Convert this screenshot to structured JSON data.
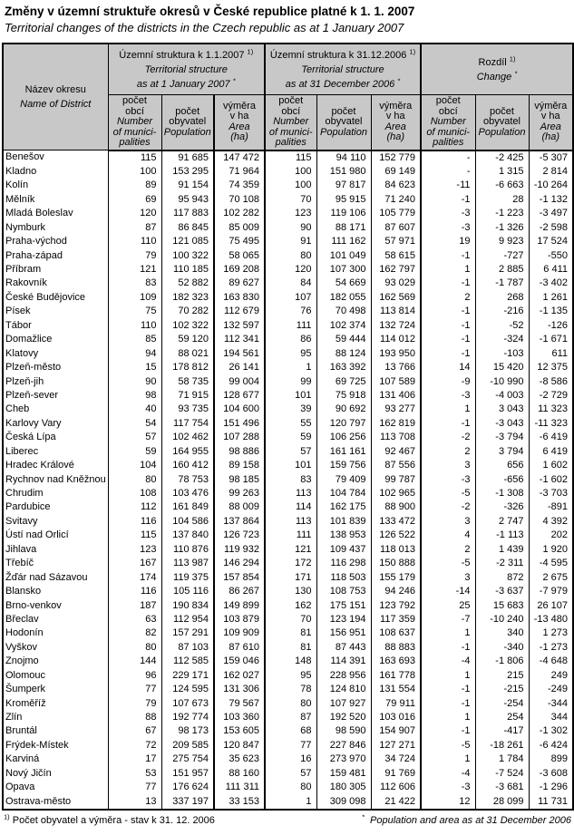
{
  "title": "Změny v územní struktuře okresů v České republice platné k 1. 1. 2007",
  "subtitle": "Territorial changes of the districts in the Czech republic as at 1 January 2007",
  "table": {
    "name_header": {
      "cs": "Název okresu",
      "en": "Name of District"
    },
    "groups": [
      {
        "cs": "Územní struktura k 1.1.2007",
        "cs_marker": "1)",
        "en1": "Territorial structure",
        "en2": "as at 1 January 2007",
        "en_marker": "*"
      },
      {
        "cs": "Územní struktura k  31.12.2006",
        "cs_marker": "1)",
        "en1": "Territorial structure",
        "en2": "as at 31 December 2006",
        "en_marker": "*"
      },
      {
        "cs": "Rozdíl",
        "cs_marker": "1)",
        "en1": "Change",
        "en2": "",
        "en_marker": "*"
      }
    ],
    "subcols": [
      {
        "cs": [
          "počet",
          "obcí"
        ],
        "en": [
          "Number",
          "of munici-",
          "palities"
        ]
      },
      {
        "cs": [
          "počet",
          "obyvatel"
        ],
        "en": [
          "Population"
        ]
      },
      {
        "cs": [
          "výměra",
          "v ha"
        ],
        "en": [
          "Area",
          "(ha)"
        ]
      }
    ],
    "rows": [
      {
        "name": "Benešov",
        "v": [
          "115",
          "91 685",
          "147 472",
          "115",
          "94 110",
          "152 779",
          "-",
          "-2 425",
          "-5 307"
        ]
      },
      {
        "name": "Kladno",
        "v": [
          "100",
          "153 295",
          "71 964",
          "100",
          "151 980",
          "69 149",
          "-",
          "1 315",
          "2 814"
        ]
      },
      {
        "name": "Kolín",
        "v": [
          "89",
          "91 154",
          "74 359",
          "100",
          "97 817",
          "84 623",
          "-11",
          "-6 663",
          "-10 264"
        ]
      },
      {
        "name": "Mělník",
        "v": [
          "69",
          "95 943",
          "70 108",
          "70",
          "95 915",
          "71 240",
          "-1",
          "28",
          "-1 132"
        ]
      },
      {
        "name": "Mladá Boleslav",
        "v": [
          "120",
          "117 883",
          "102 282",
          "123",
          "119 106",
          "105 779",
          "-3",
          "-1 223",
          "-3 497"
        ]
      },
      {
        "name": "Nymburk",
        "v": [
          "87",
          "86 845",
          "85 009",
          "90",
          "88 171",
          "87 607",
          "-3",
          "-1 326",
          "-2 598"
        ]
      },
      {
        "name": "Praha-východ",
        "v": [
          "110",
          "121 085",
          "75 495",
          "91",
          "111 162",
          "57 971",
          "19",
          "9 923",
          "17 524"
        ]
      },
      {
        "name": "Praha-západ",
        "v": [
          "79",
          "100 322",
          "58 065",
          "80",
          "101 049",
          "58 615",
          "-1",
          "-727",
          "-550"
        ]
      },
      {
        "name": "Příbram",
        "v": [
          "121",
          "110 185",
          "169 208",
          "120",
          "107 300",
          "162 797",
          "1",
          "2 885",
          "6 411"
        ]
      },
      {
        "name": "Rakovník",
        "v": [
          "83",
          "52 882",
          "89 627",
          "84",
          "54 669",
          "93 029",
          "-1",
          "-1 787",
          "-3 402"
        ]
      },
      {
        "name": "České Budějovice",
        "v": [
          "109",
          "182 323",
          "163 830",
          "107",
          "182 055",
          "162 569",
          "2",
          "268",
          "1 261"
        ]
      },
      {
        "name": "Písek",
        "v": [
          "75",
          "70 282",
          "112 679",
          "76",
          "70 498",
          "113 814",
          "-1",
          "-216",
          "-1 135"
        ]
      },
      {
        "name": "Tábor",
        "v": [
          "110",
          "102 322",
          "132 597",
          "111",
          "102 374",
          "132 724",
          "-1",
          "-52",
          "-126"
        ]
      },
      {
        "name": "Domažlice",
        "v": [
          "85",
          "59 120",
          "112 341",
          "86",
          "59 444",
          "114 012",
          "-1",
          "-324",
          "-1 671"
        ]
      },
      {
        "name": "Klatovy",
        "v": [
          "94",
          "88 021",
          "194 561",
          "95",
          "88 124",
          "193 950",
          "-1",
          "-103",
          "611"
        ]
      },
      {
        "name": "Plzeň-město",
        "v": [
          "15",
          "178 812",
          "26 141",
          "1",
          "163 392",
          "13 766",
          "14",
          "15 420",
          "12 375"
        ]
      },
      {
        "name": "Plzeň-jih",
        "v": [
          "90",
          "58 735",
          "99 004",
          "99",
          "69 725",
          "107 589",
          "-9",
          "-10 990",
          "-8 586"
        ]
      },
      {
        "name": "Plzeň-sever",
        "v": [
          "98",
          "71 915",
          "128 677",
          "101",
          "75 918",
          "131 406",
          "-3",
          "-4 003",
          "-2 729"
        ]
      },
      {
        "name": "Cheb",
        "v": [
          "40",
          "93 735",
          "104 600",
          "39",
          "90 692",
          "93 277",
          "1",
          "3 043",
          "11 323"
        ]
      },
      {
        "name": "Karlovy Vary",
        "v": [
          "54",
          "117 754",
          "151 496",
          "55",
          "120 797",
          "162 819",
          "-1",
          "-3 043",
          "-11 323"
        ]
      },
      {
        "name": "Česká Lípa",
        "v": [
          "57",
          "102 462",
          "107 288",
          "59",
          "106 256",
          "113 708",
          "-2",
          "-3 794",
          "-6 419"
        ]
      },
      {
        "name": "Liberec",
        "v": [
          "59",
          "164 955",
          "98 886",
          "57",
          "161 161",
          "92 467",
          "2",
          "3 794",
          "6 419"
        ]
      },
      {
        "name": "Hradec Králové",
        "v": [
          "104",
          "160 412",
          "89 158",
          "101",
          "159 756",
          "87 556",
          "3",
          "656",
          "1 602"
        ]
      },
      {
        "name": "Rychnov nad Kněžnou",
        "v": [
          "80",
          "78 753",
          "98 185",
          "83",
          "79 409",
          "99 787",
          "-3",
          "-656",
          "-1 602"
        ]
      },
      {
        "name": "Chrudim",
        "v": [
          "108",
          "103 476",
          "99 263",
          "113",
          "104 784",
          "102 965",
          "-5",
          "-1 308",
          "-3 703"
        ]
      },
      {
        "name": "Pardubice",
        "v": [
          "112",
          "161 849",
          "88 009",
          "114",
          "162 175",
          "88 900",
          "-2",
          "-326",
          "-891"
        ]
      },
      {
        "name": "Svitavy",
        "v": [
          "116",
          "104 586",
          "137 864",
          "113",
          "101 839",
          "133 472",
          "3",
          "2 747",
          "4 392"
        ]
      },
      {
        "name": "Ústí nad Orlicí",
        "v": [
          "115",
          "137 840",
          "126 723",
          "111",
          "138 953",
          "126 522",
          "4",
          "-1 113",
          "202"
        ]
      },
      {
        "name": "Jihlava",
        "v": [
          "123",
          "110 876",
          "119 932",
          "121",
          "109 437",
          "118 013",
          "2",
          "1 439",
          "1 920"
        ]
      },
      {
        "name": "Třebíč",
        "v": [
          "167",
          "113 987",
          "146 294",
          "172",
          "116 298",
          "150 888",
          "-5",
          "-2 311",
          "-4 595"
        ]
      },
      {
        "name": "Žďár nad Sázavou",
        "v": [
          "174",
          "119 375",
          "157 854",
          "171",
          "118 503",
          "155 179",
          "3",
          "872",
          "2 675"
        ]
      },
      {
        "name": "Blansko",
        "v": [
          "116",
          "105 116",
          "86 267",
          "130",
          "108 753",
          "94 246",
          "-14",
          "-3 637",
          "-7 979"
        ]
      },
      {
        "name": "Brno-venkov",
        "v": [
          "187",
          "190 834",
          "149 899",
          "162",
          "175 151",
          "123 792",
          "25",
          "15 683",
          "26 107"
        ]
      },
      {
        "name": "Břeclav",
        "v": [
          "63",
          "112 954",
          "103 879",
          "70",
          "123 194",
          "117 359",
          "-7",
          "-10 240",
          "-13 480"
        ]
      },
      {
        "name": "Hodonín",
        "v": [
          "82",
          "157 291",
          "109 909",
          "81",
          "156 951",
          "108 637",
          "1",
          "340",
          "1 273"
        ]
      },
      {
        "name": "Vyškov",
        "v": [
          "80",
          "87 103",
          "87 610",
          "81",
          "87 443",
          "88 883",
          "-1",
          "-340",
          "-1 273"
        ]
      },
      {
        "name": "Znojmo",
        "v": [
          "144",
          "112 585",
          "159 046",
          "148",
          "114 391",
          "163 693",
          "-4",
          "-1 806",
          "-4 648"
        ]
      },
      {
        "name": "Olomouc",
        "v": [
          "96",
          "229 171",
          "162 027",
          "95",
          "228 956",
          "161 778",
          "1",
          "215",
          "249"
        ]
      },
      {
        "name": "Šumperk",
        "v": [
          "77",
          "124 595",
          "131 306",
          "78",
          "124 810",
          "131 554",
          "-1",
          "-215",
          "-249"
        ]
      },
      {
        "name": "Kroměříž",
        "v": [
          "79",
          "107 673",
          "79 567",
          "80",
          "107 927",
          "79 911",
          "-1",
          "-254",
          "-344"
        ]
      },
      {
        "name": "Zlín",
        "v": [
          "88",
          "192 774",
          "103 360",
          "87",
          "192 520",
          "103 016",
          "1",
          "254",
          "344"
        ]
      },
      {
        "name": "Bruntál",
        "v": [
          "67",
          "98 173",
          "153 605",
          "68",
          "98 590",
          "154 907",
          "-1",
          "-417",
          "-1 302"
        ]
      },
      {
        "name": "Frýdek-Místek",
        "v": [
          "72",
          "209 585",
          "120 847",
          "77",
          "227 846",
          "127 271",
          "-5",
          "-18 261",
          "-6 424"
        ]
      },
      {
        "name": "Karviná",
        "v": [
          "17",
          "275 754",
          "35 623",
          "16",
          "273 970",
          "34 724",
          "1",
          "1 784",
          "899"
        ]
      },
      {
        "name": "Nový Jičín",
        "v": [
          "53",
          "151 957",
          "88 160",
          "57",
          "159 481",
          "91 769",
          "-4",
          "-7 524",
          "-3 608"
        ]
      },
      {
        "name": "Opava",
        "v": [
          "77",
          "176 624",
          "111 311",
          "80",
          "180 305",
          "112 606",
          "-3",
          "-3 681",
          "-1 296"
        ]
      },
      {
        "name": "Ostrava-město",
        "v": [
          "13",
          "337 197",
          "33 153",
          "1",
          "309 098",
          "21 422",
          "12",
          "28 099",
          "11 731"
        ]
      }
    ]
  },
  "footnotes": {
    "cs_marker": "1)",
    "cs": "Počet obyvatel a výměra - stav k 31. 12. 2006",
    "en_marker": "*",
    "en": "Population and area as at 31 December 2006"
  },
  "colors": {
    "header_bg": "#c8c8c8",
    "border": "#000000",
    "background": "#ffffff"
  }
}
